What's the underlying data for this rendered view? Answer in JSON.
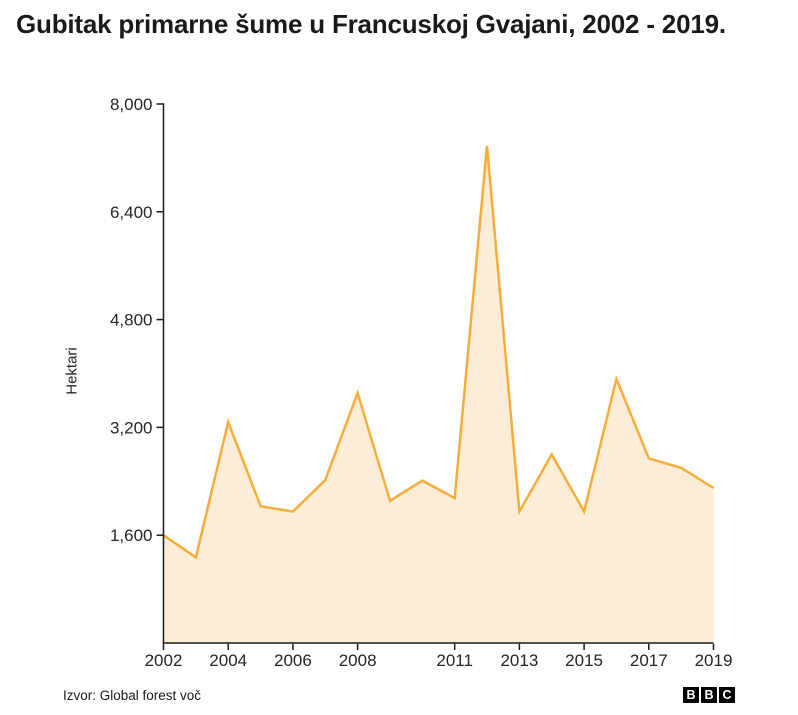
{
  "header": {
    "title": "Gubitak primarne šume u Francuskoj Gvajani, 2002 - 2019."
  },
  "chart_data": {
    "type": "area",
    "title": "Gubitak primarne šume u Francuskoj Gvajani, 2002 - 2019.",
    "xlabel": "",
    "ylabel": "Hektari",
    "x": [
      2002,
      2003,
      2004,
      2005,
      2006,
      2007,
      2008,
      2009,
      2010,
      2011,
      2012,
      2013,
      2014,
      2015,
      2016,
      2017,
      2018,
      2019
    ],
    "values": [
      1600,
      1270,
      3280,
      2030,
      1950,
      2420,
      3710,
      2110,
      2410,
      2150,
      7380,
      1950,
      2800,
      1950,
      3920,
      2740,
      2600,
      2300
    ],
    "series_name": "Gubitak primarne šume",
    "ylim": [
      0,
      8000
    ],
    "y_ticks": [
      {
        "value": 1600,
        "label": "1,600"
      },
      {
        "value": 3200,
        "label": "3,200"
      },
      {
        "value": 4800,
        "label": "4,800"
      },
      {
        "value": 6400,
        "label": "6,400"
      },
      {
        "value": 8000,
        "label": "8,000"
      }
    ],
    "x_ticks": [
      {
        "year": 2002,
        "label": "2002"
      },
      {
        "year": 2004,
        "label": "2004"
      },
      {
        "year": 2006,
        "label": "2006"
      },
      {
        "year": 2008,
        "label": "2008"
      },
      {
        "year": 2011,
        "label": "2011"
      },
      {
        "year": 2013,
        "label": "2013"
      },
      {
        "year": 2015,
        "label": "2015"
      },
      {
        "year": 2017,
        "label": "2017"
      },
      {
        "year": 2019,
        "label": "2019"
      }
    ],
    "grid": false,
    "legend": "none",
    "colors": {
      "line": "#F7AD3B",
      "fill": "#FCEED6",
      "axis": "#1A1A1A",
      "tick_text": "#262626"
    }
  },
  "footer": {
    "source": "Izvor: Global forest voč",
    "logo_letters": [
      "B",
      "B",
      "C"
    ]
  }
}
